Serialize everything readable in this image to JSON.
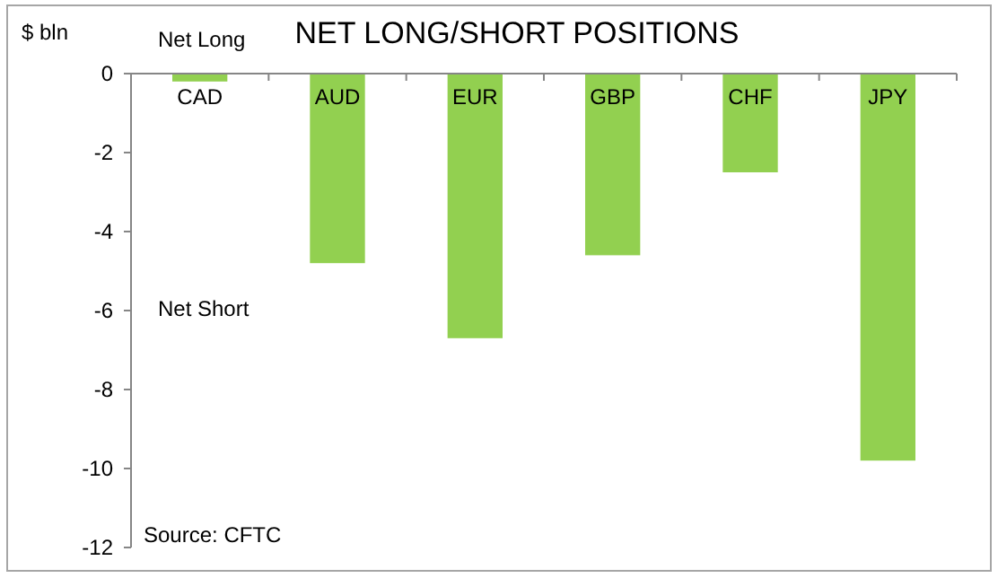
{
  "chart_data": {
    "type": "bar",
    "title": "NET LONG/SHORT POSITIONS",
    "ylabel": "$ bln",
    "categories": [
      "CAD",
      "AUD",
      "EUR",
      "GBP",
      "CHF",
      "JPY"
    ],
    "values": [
      -0.2,
      -4.8,
      -6.7,
      -4.6,
      -2.5,
      -9.8
    ],
    "color": "#92d050",
    "ylim": [
      -12,
      0
    ],
    "yticks": [
      -12,
      -10,
      -8,
      -6,
      -4,
      -2,
      0
    ],
    "grid": false,
    "annotations": [
      "Net Long",
      "Net Short",
      "Source: CFTC"
    ]
  }
}
